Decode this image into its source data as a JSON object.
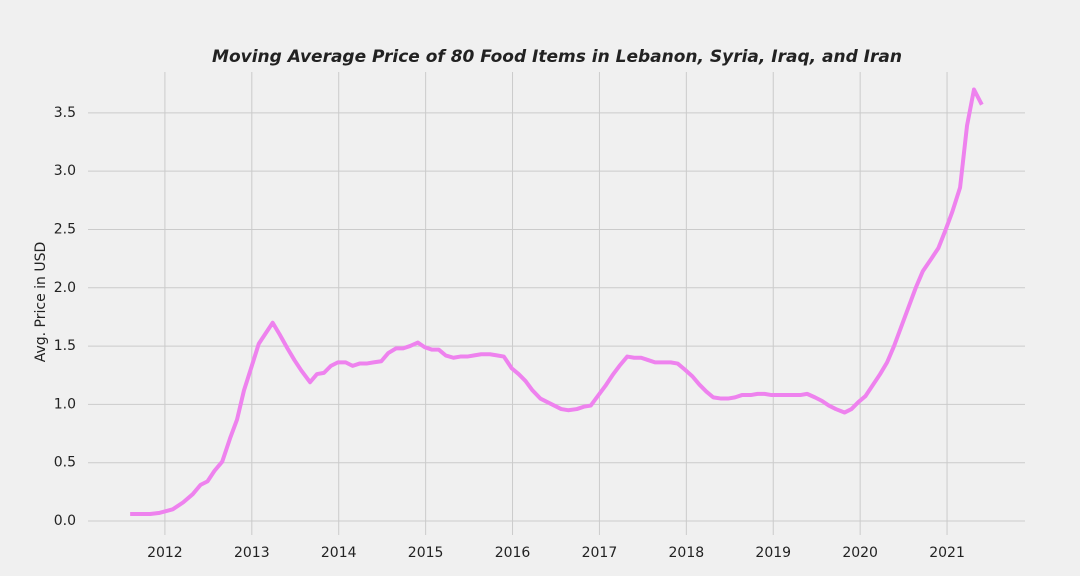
{
  "chart_data": {
    "type": "line",
    "title": "Moving Average Price of 80 Food Items in Lebanon, Syria, Iraq, and Iran",
    "y_label": "Avg. Price in USD",
    "color": "#ee82ee",
    "grid": true,
    "xlim": [
      2011.115,
      2021.897
    ],
    "xticks": [
      2012,
      2013,
      2014,
      2015,
      2016,
      2017,
      2018,
      2019,
      2020,
      2021
    ],
    "ylim": [
      -0.12,
      3.85
    ],
    "yticks": [
      {
        "value": 0,
        "label": "0.0"
      },
      0.5,
      {
        "value": 1,
        "label": "1.0"
      },
      1.5,
      {
        "value": 2,
        "label": "2.0"
      },
      2.5,
      {
        "value": 3,
        "label": "3.0"
      },
      3.5
    ],
    "x": [
      2011.6,
      2011.83,
      2011.94,
      2012.09,
      2012.21,
      2012.32,
      2012.41,
      2012.49,
      2012.57,
      2012.66,
      2012.75,
      2012.83,
      2012.91,
      2013.0,
      2013.08,
      2013.16,
      2013.24,
      2013.32,
      2013.41,
      2013.49,
      2013.57,
      2013.67,
      2013.75,
      2013.83,
      2013.91,
      2013.99,
      2014.08,
      2014.16,
      2014.24,
      2014.32,
      2014.4,
      2014.49,
      2014.57,
      2014.66,
      2014.74,
      2014.82,
      2014.91,
      2014.99,
      2015.07,
      2015.15,
      2015.23,
      2015.32,
      2015.4,
      2015.48,
      2015.56,
      2015.64,
      2015.74,
      2015.82,
      2015.9,
      2015.99,
      2016.07,
      2016.15,
      2016.23,
      2016.32,
      2016.4,
      2016.48,
      2016.56,
      2016.64,
      2016.74,
      2016.82,
      2016.9,
      2016.98,
      2017.07,
      2017.15,
      2017.23,
      2017.32,
      2017.4,
      2017.48,
      2017.56,
      2017.64,
      2017.74,
      2017.82,
      2017.9,
      2017.98,
      2018.07,
      2018.15,
      2018.23,
      2018.31,
      2018.4,
      2018.48,
      2018.56,
      2018.64,
      2018.74,
      2018.82,
      2018.9,
      2018.98,
      2019.07,
      2019.15,
      2019.23,
      2019.31,
      2019.39,
      2019.48,
      2019.56,
      2019.64,
      2019.72,
      2019.82,
      2019.9,
      2019.98,
      2020.06,
      2020.15,
      2020.23,
      2020.31,
      2020.39,
      2020.48,
      2020.56,
      2020.64,
      2020.72,
      2020.82,
      2020.9,
      2020.98,
      2021.06,
      2021.15,
      2021.23,
      2021.31,
      2021.4
    ],
    "values": [
      0.06,
      0.06,
      0.07,
      0.1,
      0.16,
      0.23,
      0.31,
      0.34,
      0.43,
      0.51,
      0.71,
      0.87,
      1.12,
      1.33,
      1.52,
      1.61,
      1.7,
      1.6,
      1.48,
      1.38,
      1.29,
      1.19,
      1.26,
      1.27,
      1.33,
      1.36,
      1.36,
      1.33,
      1.35,
      1.35,
      1.36,
      1.37,
      1.44,
      1.48,
      1.48,
      1.5,
      1.53,
      1.49,
      1.47,
      1.47,
      1.42,
      1.4,
      1.41,
      1.41,
      1.42,
      1.43,
      1.43,
      1.42,
      1.41,
      1.31,
      1.26,
      1.2,
      1.12,
      1.05,
      1.02,
      0.99,
      0.96,
      0.95,
      0.96,
      0.98,
      0.99,
      1.07,
      1.16,
      1.25,
      1.33,
      1.41,
      1.4,
      1.4,
      1.38,
      1.36,
      1.36,
      1.36,
      1.35,
      1.3,
      1.24,
      1.17,
      1.11,
      1.06,
      1.05,
      1.05,
      1.06,
      1.08,
      1.08,
      1.09,
      1.09,
      1.08,
      1.08,
      1.08,
      1.08,
      1.08,
      1.09,
      1.06,
      1.03,
      0.99,
      0.96,
      0.93,
      0.96,
      1.02,
      1.07,
      1.17,
      1.26,
      1.36,
      1.5,
      1.68,
      1.84,
      2.0,
      2.14,
      2.25,
      2.34,
      2.49,
      2.65,
      2.86,
      3.39,
      3.7,
      3.57
    ]
  }
}
